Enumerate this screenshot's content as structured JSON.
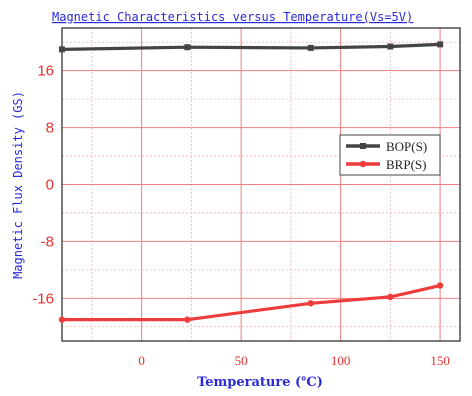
{
  "chart_data": {
    "type": "line",
    "title": "Magnetic Characteristics versus Temperature(Vs=5V)",
    "xlabel": "Temperature (℃)",
    "ylabel": "Magnetic Flux Density (GS)",
    "x": [
      -40,
      23,
      85,
      125,
      150
    ],
    "xlim": [
      -40,
      160
    ],
    "ylim": [
      -22,
      22
    ],
    "xticks": [
      "0",
      "50",
      "100",
      "150"
    ],
    "yticks": [
      "16",
      "8",
      "0",
      "-8",
      "-16"
    ],
    "grid": true,
    "legend_position": "right",
    "series": [
      {
        "name": "BOP(S)",
        "color": "#444444",
        "values": [
          19.0,
          19.3,
          19.2,
          19.4,
          19.7
        ]
      },
      {
        "name": "BRP(S)",
        "color": "#ee3b3b",
        "values": [
          -19.0,
          -19.0,
          -16.7,
          -15.8,
          -14.2
        ]
      }
    ]
  },
  "colors": {
    "grid_major": "#f08080",
    "grid_minor": "#f5b0b0",
    "frame": "#222222",
    "text_blue": "#2a2ad8",
    "tick_red": "#e53030"
  }
}
